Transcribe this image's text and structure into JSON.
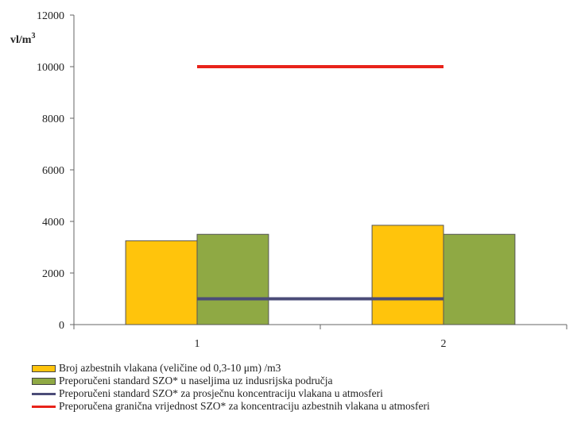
{
  "chart_data": {
    "type": "bar",
    "categories": [
      "1",
      "2"
    ],
    "ylabel": "vl/m",
    "ylabel_superscript": "3",
    "ylim": [
      0,
      12000
    ],
    "yticks": [
      0,
      2000,
      4000,
      6000,
      8000,
      10000,
      12000
    ],
    "grid": false,
    "legend_position": "bottom",
    "series": [
      {
        "name": "Broj azbestnih vlakana (veličine od 0,3-10 μm) /m3",
        "kind": "bar",
        "color": "#FFC40C",
        "values": [
          3250,
          3850
        ]
      },
      {
        "name": "Preporučeni standard SZO* u naseljima uz indusrijska područja",
        "kind": "bar",
        "color": "#8FA944",
        "values": [
          3500,
          3500
        ]
      },
      {
        "name": "Preporučeni standard SZO* za prosječnu koncentraciju vlakana u atmosferi",
        "kind": "line",
        "color": "#4B4C78",
        "values": [
          1000,
          1000
        ]
      },
      {
        "name": "Preporučena granična vrijednost SZO* za koncentraciju azbestnih vlakana u atmosferi",
        "kind": "line",
        "color": "#E8231A",
        "values": [
          10000,
          10000
        ]
      }
    ]
  }
}
